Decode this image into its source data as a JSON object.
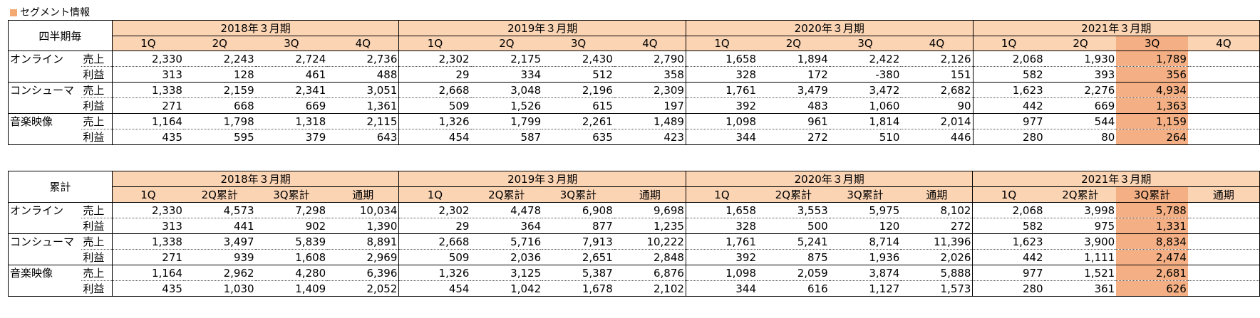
{
  "section_title": "セグメント情報",
  "colors": {
    "header_bg": "#fbd4b4",
    "current_bg": "#f4b084"
  },
  "periods": [
    "2018年３月期",
    "2019年３月期",
    "2020年３月期",
    "2021年３月期"
  ],
  "quarterly": {
    "corner": "四半期毎",
    "subheaders": [
      "1Q",
      "2Q",
      "3Q",
      "4Q",
      "1Q",
      "2Q",
      "3Q",
      "4Q",
      "1Q",
      "2Q",
      "3Q",
      "4Q",
      "1Q",
      "2Q",
      "3Q",
      "4Q"
    ],
    "segments": [
      {
        "name": "オンライン",
        "rows": [
          {
            "kind": "売上",
            "values": [
              "2,330",
              "2,243",
              "2,724",
              "2,736",
              "2,302",
              "2,175",
              "2,430",
              "2,790",
              "1,658",
              "1,894",
              "2,422",
              "2,126",
              "2,068",
              "1,930",
              "1,789",
              ""
            ]
          },
          {
            "kind": "利益",
            "values": [
              "313",
              "128",
              "461",
              "488",
              "29",
              "334",
              "512",
              "358",
              "328",
              "172",
              "-380",
              "151",
              "582",
              "393",
              "356",
              ""
            ]
          }
        ]
      },
      {
        "name": "コンシューマ",
        "rows": [
          {
            "kind": "売上",
            "values": [
              "1,338",
              "2,159",
              "2,341",
              "3,051",
              "2,668",
              "3,048",
              "2,196",
              "2,309",
              "1,761",
              "3,479",
              "3,472",
              "2,682",
              "1,623",
              "2,276",
              "4,934",
              ""
            ]
          },
          {
            "kind": "利益",
            "values": [
              "271",
              "668",
              "669",
              "1,361",
              "509",
              "1,526",
              "615",
              "197",
              "392",
              "483",
              "1,060",
              "90",
              "442",
              "669",
              "1,363",
              ""
            ]
          }
        ]
      },
      {
        "name": "音楽映像",
        "rows": [
          {
            "kind": "売上",
            "values": [
              "1,164",
              "1,798",
              "1,318",
              "2,115",
              "1,326",
              "1,799",
              "2,261",
              "1,489",
              "1,098",
              "961",
              "1,814",
              "2,014",
              "977",
              "544",
              "1,159",
              ""
            ]
          },
          {
            "kind": "利益",
            "values": [
              "435",
              "595",
              "379",
              "643",
              "454",
              "587",
              "635",
              "423",
              "344",
              "272",
              "510",
              "446",
              "280",
              "80",
              "264",
              ""
            ]
          }
        ]
      }
    ]
  },
  "cumulative": {
    "corner": "累計",
    "subheaders": [
      "1Q",
      "2Q累計",
      "3Q累計",
      "通期",
      "1Q",
      "2Q累計",
      "3Q累計",
      "通期",
      "1Q",
      "2Q累計",
      "3Q累計",
      "通期",
      "1Q",
      "2Q累計",
      "3Q累計",
      "通期"
    ],
    "segments": [
      {
        "name": "オンライン",
        "rows": [
          {
            "kind": "売上",
            "values": [
              "2,330",
              "4,573",
              "7,298",
              "10,034",
              "2,302",
              "4,478",
              "6,908",
              "9,698",
              "1,658",
              "3,553",
              "5,975",
              "8,102",
              "2,068",
              "3,998",
              "5,788",
              ""
            ]
          },
          {
            "kind": "利益",
            "values": [
              "313",
              "441",
              "902",
              "1,390",
              "29",
              "364",
              "877",
              "1,235",
              "328",
              "500",
              "120",
              "272",
              "582",
              "975",
              "1,331",
              ""
            ]
          }
        ]
      },
      {
        "name": "コンシューマ",
        "rows": [
          {
            "kind": "売上",
            "values": [
              "1,338",
              "3,497",
              "5,839",
              "8,891",
              "2,668",
              "5,716",
              "7,913",
              "10,222",
              "1,761",
              "5,241",
              "8,714",
              "11,396",
              "1,623",
              "3,900",
              "8,834",
              ""
            ]
          },
          {
            "kind": "利益",
            "values": [
              "271",
              "939",
              "1,608",
              "2,969",
              "509",
              "2,036",
              "2,651",
              "2,848",
              "392",
              "875",
              "1,936",
              "2,026",
              "442",
              "1,111",
              "2,474",
              ""
            ]
          }
        ]
      },
      {
        "name": "音楽映像",
        "rows": [
          {
            "kind": "売上",
            "values": [
              "1,164",
              "2,962",
              "4,280",
              "6,396",
              "1,326",
              "3,125",
              "5,387",
              "6,876",
              "1,098",
              "2,059",
              "3,874",
              "5,888",
              "977",
              "1,521",
              "2,681",
              ""
            ]
          },
          {
            "kind": "利益",
            "values": [
              "435",
              "1,030",
              "1,409",
              "2,052",
              "454",
              "1,042",
              "1,678",
              "2,102",
              "344",
              "616",
              "1,127",
              "1,573",
              "280",
              "361",
              "626",
              ""
            ]
          }
        ]
      }
    ]
  }
}
